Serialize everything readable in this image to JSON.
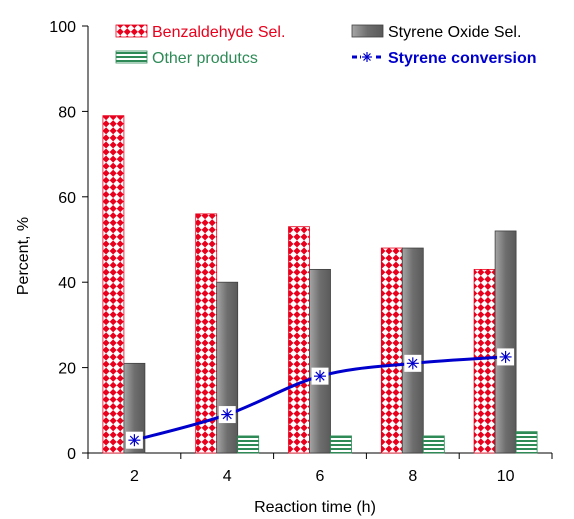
{
  "chart_data": {
    "type": "bar",
    "title": "",
    "xlabel": "Reaction time (h)",
    "ylabel": "Percent, %",
    "ylim": [
      0,
      100
    ],
    "yticks": [
      "0",
      "20",
      "40",
      "60",
      "80",
      "100"
    ],
    "categories": [
      "2",
      "4",
      "6",
      "8",
      "10"
    ],
    "grid": false,
    "legend_position": "top",
    "series": [
      {
        "name": "Benzaldehyde Sel.",
        "type": "bar",
        "color": "#e8001c",
        "pattern": "checkered red/white",
        "values": [
          79,
          56,
          53,
          48,
          43
        ]
      },
      {
        "name": "Styrene Oxide Sel.",
        "type": "bar",
        "color": "#7f7f7f",
        "pattern": "solid gray",
        "values": [
          21,
          40,
          43,
          48,
          52
        ]
      },
      {
        "name": "Other produtcs",
        "type": "bar",
        "color": "#2e8b57",
        "pattern": "horizontal green stripes",
        "values": [
          0,
          4,
          4,
          4,
          5
        ]
      },
      {
        "name": "Styrene conversion",
        "type": "line",
        "color": "#0000cc",
        "marker": "asterisk",
        "values": [
          3,
          9,
          18,
          21,
          22.5
        ]
      }
    ]
  }
}
